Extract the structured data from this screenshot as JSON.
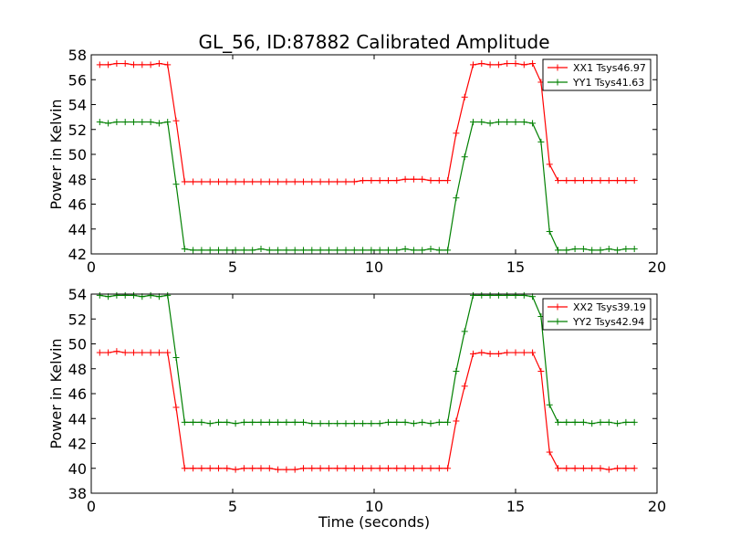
{
  "title": "GL_56, ID:87882 Calibrated Amplitude",
  "chart_data": [
    {
      "type": "line",
      "title": "GL_56, ID:87882 Calibrated Amplitude",
      "xlabel": "",
      "ylabel": "Power in Kelvin",
      "xlim": [
        0,
        20
      ],
      "ylim": [
        42,
        58
      ],
      "xticks": [
        "0",
        "5",
        "10",
        "15",
        "20"
      ],
      "yticks": [
        "42",
        "44",
        "46",
        "48",
        "50",
        "52",
        "54",
        "56",
        "58"
      ],
      "grid": false,
      "legend_position": "top-right",
      "x": [
        0.3,
        0.6,
        0.9,
        1.2,
        1.5,
        1.8,
        2.1,
        2.4,
        2.7,
        3.0,
        3.3,
        3.6,
        3.9,
        4.2,
        4.5,
        4.8,
        5.1,
        5.4,
        5.7,
        6.0,
        6.3,
        6.6,
        6.9,
        7.2,
        7.5,
        7.8,
        8.1,
        8.4,
        8.7,
        9.0,
        9.3,
        9.6,
        9.9,
        10.2,
        10.5,
        10.8,
        11.1,
        11.4,
        11.7,
        12.0,
        12.3,
        12.6,
        12.9,
        13.2,
        13.5,
        13.8,
        14.1,
        14.4,
        14.7,
        15.0,
        15.3,
        15.6,
        15.9,
        16.2,
        16.5,
        16.8,
        17.1,
        17.4,
        17.7,
        18.0,
        18.3,
        18.6,
        18.9,
        19.2
      ],
      "series": [
        {
          "name": "XX1 Tsys46.97",
          "color": "#ff0000",
          "values": [
            57.2,
            57.2,
            57.3,
            57.3,
            57.2,
            57.2,
            57.2,
            57.3,
            57.2,
            52.7,
            47.8,
            47.8,
            47.8,
            47.8,
            47.8,
            47.8,
            47.8,
            47.8,
            47.8,
            47.8,
            47.8,
            47.8,
            47.8,
            47.8,
            47.8,
            47.8,
            47.8,
            47.8,
            47.8,
            47.8,
            47.8,
            47.9,
            47.9,
            47.9,
            47.9,
            47.9,
            48.0,
            48.0,
            48.0,
            47.9,
            47.9,
            47.9,
            51.7,
            54.6,
            57.2,
            57.3,
            57.2,
            57.2,
            57.3,
            57.3,
            57.2,
            57.3,
            55.8,
            49.2,
            47.9,
            47.9,
            47.9,
            47.9,
            47.9,
            47.9,
            47.9,
            47.9,
            47.9,
            47.9
          ]
        },
        {
          "name": "YY1 Tsys41.63",
          "color": "#008000",
          "values": [
            52.6,
            52.5,
            52.6,
            52.6,
            52.6,
            52.6,
            52.6,
            52.5,
            52.6,
            47.6,
            42.4,
            42.3,
            42.3,
            42.3,
            42.3,
            42.3,
            42.3,
            42.3,
            42.3,
            42.4,
            42.3,
            42.3,
            42.3,
            42.3,
            42.3,
            42.3,
            42.3,
            42.3,
            42.3,
            42.3,
            42.3,
            42.3,
            42.3,
            42.3,
            42.3,
            42.3,
            42.4,
            42.3,
            42.3,
            42.4,
            42.3,
            42.3,
            46.5,
            49.8,
            52.6,
            52.6,
            52.5,
            52.6,
            52.6,
            52.6,
            52.6,
            52.5,
            51.0,
            43.8,
            42.3,
            42.3,
            42.4,
            42.4,
            42.3,
            42.3,
            42.4,
            42.3,
            42.4,
            42.4
          ]
        }
      ]
    },
    {
      "type": "line",
      "title": "",
      "xlabel": "Time (seconds)",
      "ylabel": "Power in Kelvin",
      "xlim": [
        0,
        20
      ],
      "ylim": [
        38,
        54
      ],
      "xticks": [
        "0",
        "5",
        "10",
        "15",
        "20"
      ],
      "yticks": [
        "38",
        "40",
        "42",
        "44",
        "46",
        "48",
        "50",
        "52",
        "54"
      ],
      "grid": false,
      "legend_position": "top-right",
      "x": [
        0.3,
        0.6,
        0.9,
        1.2,
        1.5,
        1.8,
        2.1,
        2.4,
        2.7,
        3.0,
        3.3,
        3.6,
        3.9,
        4.2,
        4.5,
        4.8,
        5.1,
        5.4,
        5.7,
        6.0,
        6.3,
        6.6,
        6.9,
        7.2,
        7.5,
        7.8,
        8.1,
        8.4,
        8.7,
        9.0,
        9.3,
        9.6,
        9.9,
        10.2,
        10.5,
        10.8,
        11.1,
        11.4,
        11.7,
        12.0,
        12.3,
        12.6,
        12.9,
        13.2,
        13.5,
        13.8,
        14.1,
        14.4,
        14.7,
        15.0,
        15.3,
        15.6,
        15.9,
        16.2,
        16.5,
        16.8,
        17.1,
        17.4,
        17.7,
        18.0,
        18.3,
        18.6,
        18.9,
        19.2
      ],
      "series": [
        {
          "name": "XX2 Tsys39.19",
          "color": "#ff0000",
          "values": [
            49.3,
            49.3,
            49.4,
            49.3,
            49.3,
            49.3,
            49.3,
            49.3,
            49.3,
            44.9,
            40.0,
            40.0,
            40.0,
            40.0,
            40.0,
            40.0,
            39.9,
            40.0,
            40.0,
            40.0,
            40.0,
            39.9,
            39.9,
            39.9,
            40.0,
            40.0,
            40.0,
            40.0,
            40.0,
            40.0,
            40.0,
            40.0,
            40.0,
            40.0,
            40.0,
            40.0,
            40.0,
            40.0,
            40.0,
            40.0,
            40.0,
            40.0,
            43.8,
            46.6,
            49.2,
            49.3,
            49.2,
            49.2,
            49.3,
            49.3,
            49.3,
            49.3,
            47.8,
            41.3,
            40.0,
            40.0,
            40.0,
            40.0,
            40.0,
            40.0,
            39.9,
            40.0,
            40.0,
            40.0
          ]
        },
        {
          "name": "YY2 Tsys42.94",
          "color": "#008000",
          "values": [
            53.9,
            53.8,
            53.9,
            53.9,
            53.9,
            53.8,
            53.9,
            53.8,
            53.9,
            48.9,
            43.7,
            43.7,
            43.7,
            43.6,
            43.7,
            43.7,
            43.6,
            43.7,
            43.7,
            43.7,
            43.7,
            43.7,
            43.7,
            43.7,
            43.7,
            43.6,
            43.6,
            43.6,
            43.6,
            43.6,
            43.6,
            43.6,
            43.6,
            43.6,
            43.7,
            43.7,
            43.7,
            43.6,
            43.7,
            43.6,
            43.7,
            43.7,
            47.8,
            51.0,
            53.9,
            53.9,
            53.9,
            53.9,
            53.9,
            53.9,
            53.9,
            53.8,
            52.2,
            45.1,
            43.7,
            43.7,
            43.7,
            43.7,
            43.6,
            43.7,
            43.7,
            43.6,
            43.7,
            43.7
          ]
        }
      ]
    }
  ]
}
